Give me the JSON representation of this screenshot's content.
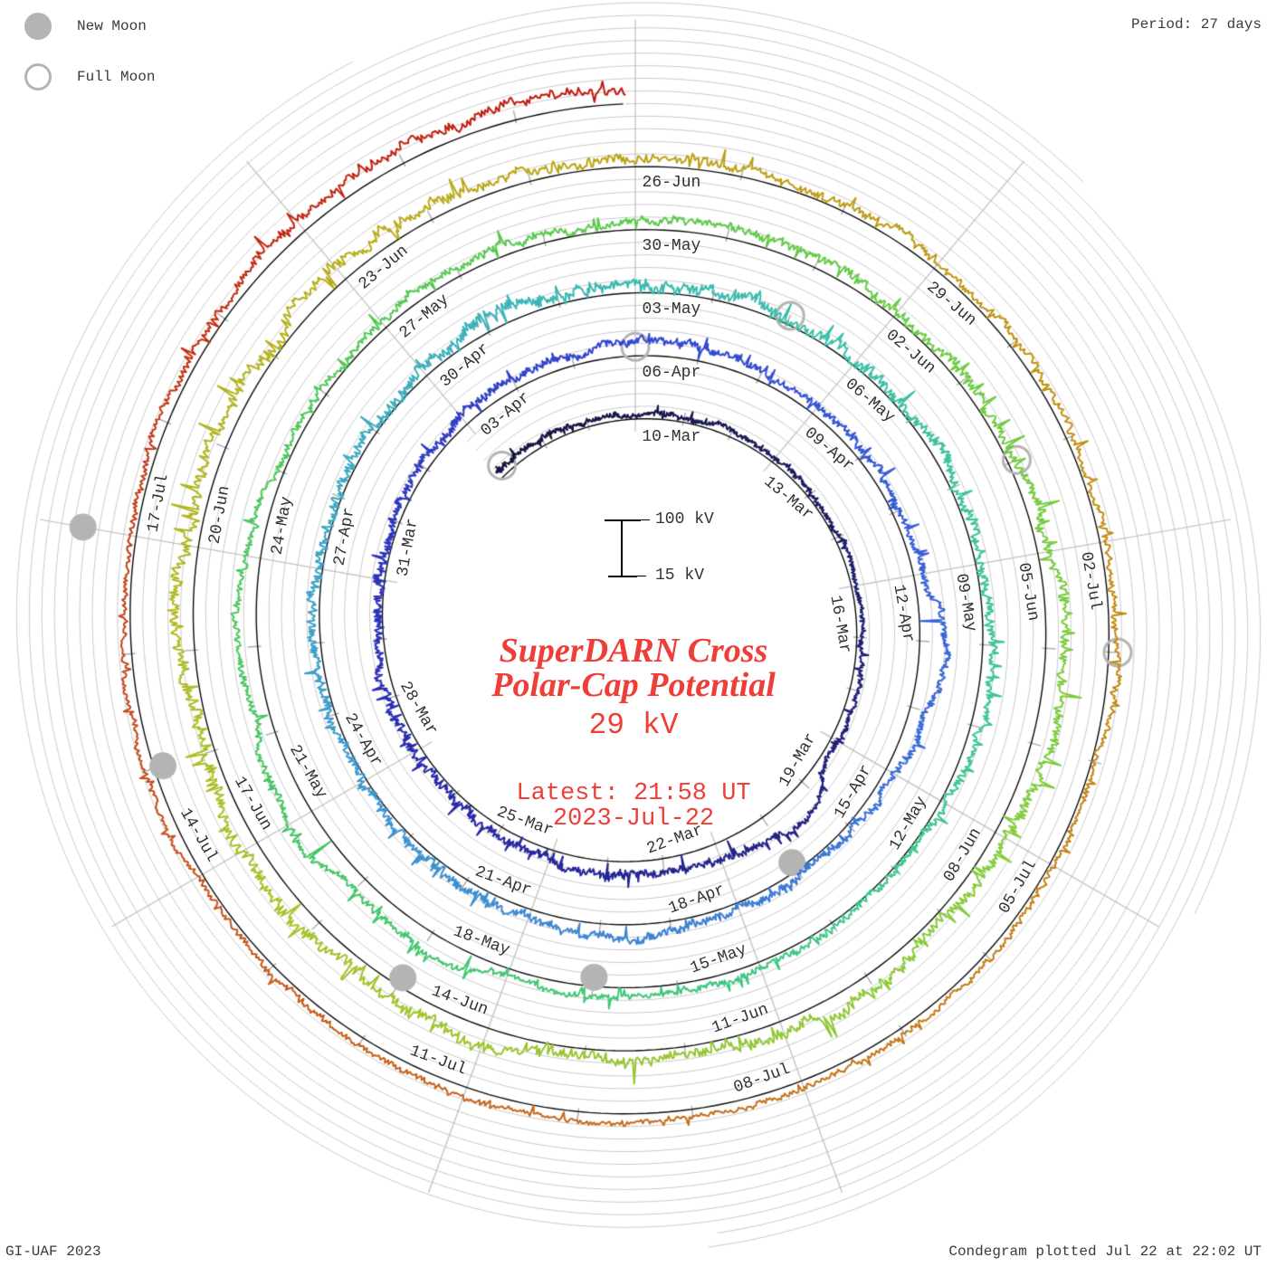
{
  "header": {
    "period_label": "Period: 27 days"
  },
  "legend": {
    "new_moon_label": "New Moon",
    "full_moon_label": "Full Moon",
    "marker_color": "#b4b4b4"
  },
  "footer": {
    "left": "GI-UAF 2023",
    "right": "Condegram plotted Jul 22 at 22:02 UT"
  },
  "center": {
    "title_line1": "SuperDARN Cross",
    "title_line2": "Polar-Cap Potential",
    "current_value": "29 kV",
    "latest_time": "Latest: 21:58 UT",
    "latest_date": "2023-Jul-22",
    "accent_color": "#ee3e37"
  },
  "scale": {
    "top": "100 kV",
    "bottom": "15 kV"
  },
  "chart_data": {
    "type": "line",
    "subtype": "condegram-polar-spiral",
    "title": "SuperDARN Cross Polar-Cap Potential",
    "units": "kV",
    "period_days": 27,
    "spoke_step_days": 3,
    "value_axis": {
      "min_kv": 15,
      "max_kv": 100
    },
    "first_ring_date": "10-Mar",
    "latest": {
      "value_kv": 29,
      "time_ut": "21:58",
      "date": "2023-Jul-22"
    },
    "data_start_day": -3.2,
    "data_end_day": 134.92,
    "spokes": [
      {
        "angle_deg": 0,
        "dates": [
          "10-Mar",
          "06-Apr",
          "03-May",
          "30-May",
          "26-Jun"
        ]
      },
      {
        "angle_deg": 40,
        "dates": [
          "13-Mar",
          "09-Apr",
          "06-May",
          "02-Jun",
          "29-Jun"
        ]
      },
      {
        "angle_deg": 80,
        "dates": [
          "16-Mar",
          "12-Apr",
          "09-May",
          "05-Jun",
          "02-Jul"
        ]
      },
      {
        "angle_deg": 120,
        "dates": [
          "19-Mar",
          "15-Apr",
          "12-May",
          "08-Jun",
          "05-Jul"
        ]
      },
      {
        "angle_deg": 160,
        "dates": [
          "22-Mar",
          "18-Apr",
          "15-May",
          "11-Jun",
          "08-Jul"
        ]
      },
      {
        "angle_deg": 200,
        "dates": [
          "25-Mar",
          "21-Apr",
          "18-May",
          "14-Jun",
          "11-Jul"
        ]
      },
      {
        "angle_deg": 240,
        "dates": [
          "28-Mar",
          "24-Apr",
          "21-May",
          "17-Jun",
          "14-Jul"
        ]
      },
      {
        "angle_deg": 280,
        "dates": [
          "31-Mar",
          "27-Apr",
          "24-May",
          "20-Jun",
          "17-Jul"
        ]
      },
      {
        "angle_deg": 320,
        "dates": [
          "03-Apr",
          "30-Apr",
          "27-May",
          "23-Jun"
        ]
      }
    ],
    "moon_events": [
      {
        "type": "full",
        "label": "Full Moon",
        "day": -3
      },
      {
        "type": "new",
        "label": "New Moon",
        "day": 11
      },
      {
        "type": "full",
        "label": "Full Moon",
        "day": 27
      },
      {
        "type": "new",
        "label": "New Moon",
        "day": 41
      },
      {
        "type": "full",
        "label": "Full Moon",
        "day": 56
      },
      {
        "type": "new",
        "label": "New Moon",
        "day": 70
      },
      {
        "type": "full",
        "label": "Full Moon",
        "day": 86
      },
      {
        "type": "new",
        "label": "New Moon",
        "day": 100
      },
      {
        "type": "full",
        "label": "Full Moon",
        "day": 115
      },
      {
        "type": "new",
        "label": "New Moon",
        "day": 129
      }
    ],
    "color_stops": [
      [
        -3,
        "#15153d"
      ],
      [
        8,
        "#1f1f74"
      ],
      [
        18,
        "#2a2aac"
      ],
      [
        27,
        "#3346d0"
      ],
      [
        36,
        "#3a6ed6"
      ],
      [
        45,
        "#3e97cf"
      ],
      [
        54,
        "#3bbab2"
      ],
      [
        63,
        "#3dc78e"
      ],
      [
        72,
        "#44c563"
      ],
      [
        81,
        "#5bc94b"
      ],
      [
        90,
        "#82cb38"
      ],
      [
        99,
        "#a9c026"
      ],
      [
        106,
        "#b9ab18"
      ],
      [
        112,
        "#c19311"
      ],
      [
        118,
        "#c47d17"
      ],
      [
        124,
        "#c55e19"
      ],
      [
        129,
        "#c43c16"
      ],
      [
        135,
        "#bd150e"
      ]
    ],
    "series_synthesis": {
      "note": "Potential trace is a dense noisy time series (≈2-min cadence); values read from scale span ~15-100 kV, typical 25-60 kV with storm-time spikes; reproduced with a seeded random walk.",
      "seed": 1337,
      "dt_days": 0.015,
      "mean_kv": 26,
      "clamp_kv": [
        13.5,
        102
      ]
    }
  }
}
